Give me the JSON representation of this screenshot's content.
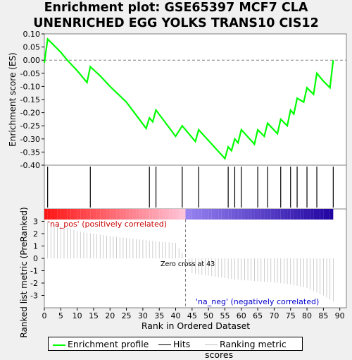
{
  "title_line1": "Enrichment plot: GSE65397 MCF7 CLA",
  "title_line2": "UNENRICHED EGG YOLKS TRANS10 CIS12",
  "colors": {
    "es_line": "#00ff00",
    "hits": "#000000",
    "metric": "#c0c0c0",
    "pos_label": "#cc0000",
    "neg_label": "#0000cc",
    "zero_line": "#808080"
  },
  "chart_data": {
    "type": "line",
    "panels": [
      {
        "name": "enrichment-profile",
        "ylabel": "Enrichment score (ES)",
        "ylim": [
          -0.4,
          0.1
        ],
        "yticks": [
          "0.10",
          "0.05",
          "0.00",
          "-0.05",
          "-0.10",
          "-0.15",
          "-0.20",
          "-0.25",
          "-0.30",
          "-0.35",
          "-0.40"
        ],
        "ytick_values": [
          0.1,
          0.05,
          0.0,
          -0.05,
          -0.1,
          -0.15,
          -0.2,
          -0.25,
          -0.3,
          -0.35,
          -0.4
        ],
        "series": [
          {
            "x": [
              0,
              1,
              5,
              7,
              10,
              13,
              14,
              17,
              20,
              25,
              28,
              31,
              32,
              33,
              34,
              40,
              41,
              42,
              46,
              47,
              55,
              56,
              57,
              58,
              59,
              60,
              64,
              65,
              67,
              68,
              71,
              72,
              74,
              75,
              76,
              77,
              79,
              80,
              82,
              83,
              85,
              87,
              88
            ],
            "y": [
              -0.01,
              0.08,
              0.03,
              0.0,
              -0.04,
              -0.085,
              -0.025,
              -0.06,
              -0.1,
              -0.16,
              -0.21,
              -0.26,
              -0.22,
              -0.235,
              -0.19,
              -0.29,
              -0.27,
              -0.25,
              -0.31,
              -0.265,
              -0.375,
              -0.33,
              -0.345,
              -0.3,
              -0.315,
              -0.265,
              -0.32,
              -0.265,
              -0.29,
              -0.24,
              -0.28,
              -0.225,
              -0.25,
              -0.19,
              -0.205,
              -0.145,
              -0.16,
              -0.105,
              -0.13,
              -0.05,
              -0.08,
              -0.105,
              0.0
            ]
          }
        ]
      },
      {
        "name": "hits",
        "hit_positions": [
          1,
          14,
          32,
          34,
          42,
          47,
          56,
          58,
          60,
          65,
          68,
          72,
          75,
          77,
          80,
          83,
          88
        ]
      },
      {
        "name": "ranking-metric",
        "ylabel": "Ranked list metric (PreRanked)",
        "ylim": [
          -4,
          4
        ],
        "yticks": [
          "3",
          "2",
          "1",
          "0",
          "-1",
          "-2",
          "-3"
        ],
        "ytick_values": [
          3,
          2,
          1,
          0,
          -1,
          -2,
          -3
        ],
        "x": [
          0,
          5,
          10,
          15,
          20,
          25,
          30,
          35,
          40,
          43,
          45,
          50,
          55,
          60,
          65,
          70,
          75,
          80,
          85,
          88
        ],
        "values": [
          3.1,
          2.6,
          2.2,
          2.0,
          1.8,
          1.65,
          1.5,
          1.35,
          1.25,
          0.0,
          -1.2,
          -1.4,
          -1.6,
          -1.75,
          -1.85,
          -1.95,
          -2.1,
          -2.4,
          -3.0,
          -3.5
        ],
        "zero_cross_label": "Zero cross at 43",
        "zero_cross": 43,
        "pos_label": "'na_pos' (positively correlated)",
        "neg_label": "'na_neg' (negatively correlated)"
      }
    ],
    "xlabel": "Rank in Ordered Dataset",
    "xlim": [
      0,
      92
    ],
    "xticks": [
      "0",
      "5",
      "10",
      "15",
      "20",
      "25",
      "30",
      "35",
      "40",
      "45",
      "50",
      "55",
      "60",
      "65",
      "70",
      "75",
      "80",
      "85",
      "90"
    ],
    "xtick_values": [
      0,
      5,
      10,
      15,
      20,
      25,
      30,
      35,
      40,
      45,
      50,
      55,
      60,
      65,
      70,
      75,
      80,
      85,
      90
    ],
    "legend": [
      "Enrichment profile",
      "Hits",
      "Ranking metric scores"
    ],
    "legend_position": "bottom"
  }
}
